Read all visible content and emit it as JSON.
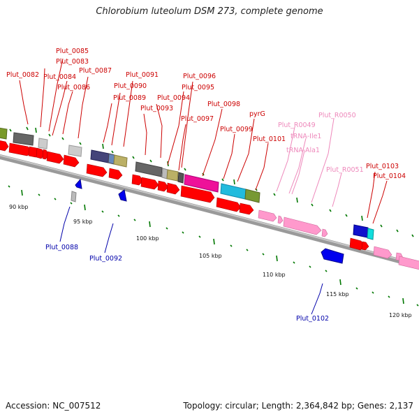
{
  "title": "Chlorobium luteolum DSM 273, complete genome",
  "footer": {
    "accession": "Accession: NC_007512",
    "summary": "Topology: circular; Length: 2,364,842 bp; Genes: 2,137"
  },
  "colors": {
    "cds": "#ff0000",
    "rna": "#ff99cc",
    "label_top": "#cc0000",
    "label_rna": "#ee88bb",
    "label_bottom": "#0000aa",
    "backbone": "#999999",
    "tick": "#007700"
  },
  "scale_ticks": [
    "90 kbp",
    "95 kbp",
    "100 kbp",
    "105 kbp",
    "110 kbp",
    "115 kbp",
    "120 kbp"
  ],
  "top_labels": [
    {
      "text": "Plut_0082",
      "kind": "cds"
    },
    {
      "text": "Plut_0083",
      "kind": "cds"
    },
    {
      "text": "Plut_0084",
      "kind": "cds"
    },
    {
      "text": "Plut_0085",
      "kind": "cds"
    },
    {
      "text": "Plut_0086",
      "kind": "cds"
    },
    {
      "text": "Plut_0087",
      "kind": "cds"
    },
    {
      "text": "Plut_0089",
      "kind": "cds"
    },
    {
      "text": "Plut_0090",
      "kind": "cds"
    },
    {
      "text": "Plut_0091",
      "kind": "cds"
    },
    {
      "text": "Plut_0093",
      "kind": "cds"
    },
    {
      "text": "Plut_0094",
      "kind": "cds"
    },
    {
      "text": "Plut_0095",
      "kind": "cds"
    },
    {
      "text": "Plut_0096",
      "kind": "cds"
    },
    {
      "text": "Plut_0097",
      "kind": "cds"
    },
    {
      "text": "Plut_0098",
      "kind": "cds"
    },
    {
      "text": "Plut_0099",
      "kind": "cds"
    },
    {
      "text": "pyrG",
      "kind": "cds"
    },
    {
      "text": "Plut_0101",
      "kind": "cds"
    },
    {
      "text": "Plut_R0049",
      "kind": "rna"
    },
    {
      "text": "tRNA-Ile1",
      "kind": "rna"
    },
    {
      "text": "tRNA-Ala1",
      "kind": "rna"
    },
    {
      "text": "Plut_R0050",
      "kind": "rna"
    },
    {
      "text": "Plut_R0051",
      "kind": "rna"
    },
    {
      "text": "Plut_0103",
      "kind": "cds"
    },
    {
      "text": "Plut_0104",
      "kind": "cds"
    }
  ],
  "bottom_labels": [
    {
      "text": "Plut_0088"
    },
    {
      "text": "Plut_0092"
    },
    {
      "text": "Plut_0102"
    }
  ]
}
